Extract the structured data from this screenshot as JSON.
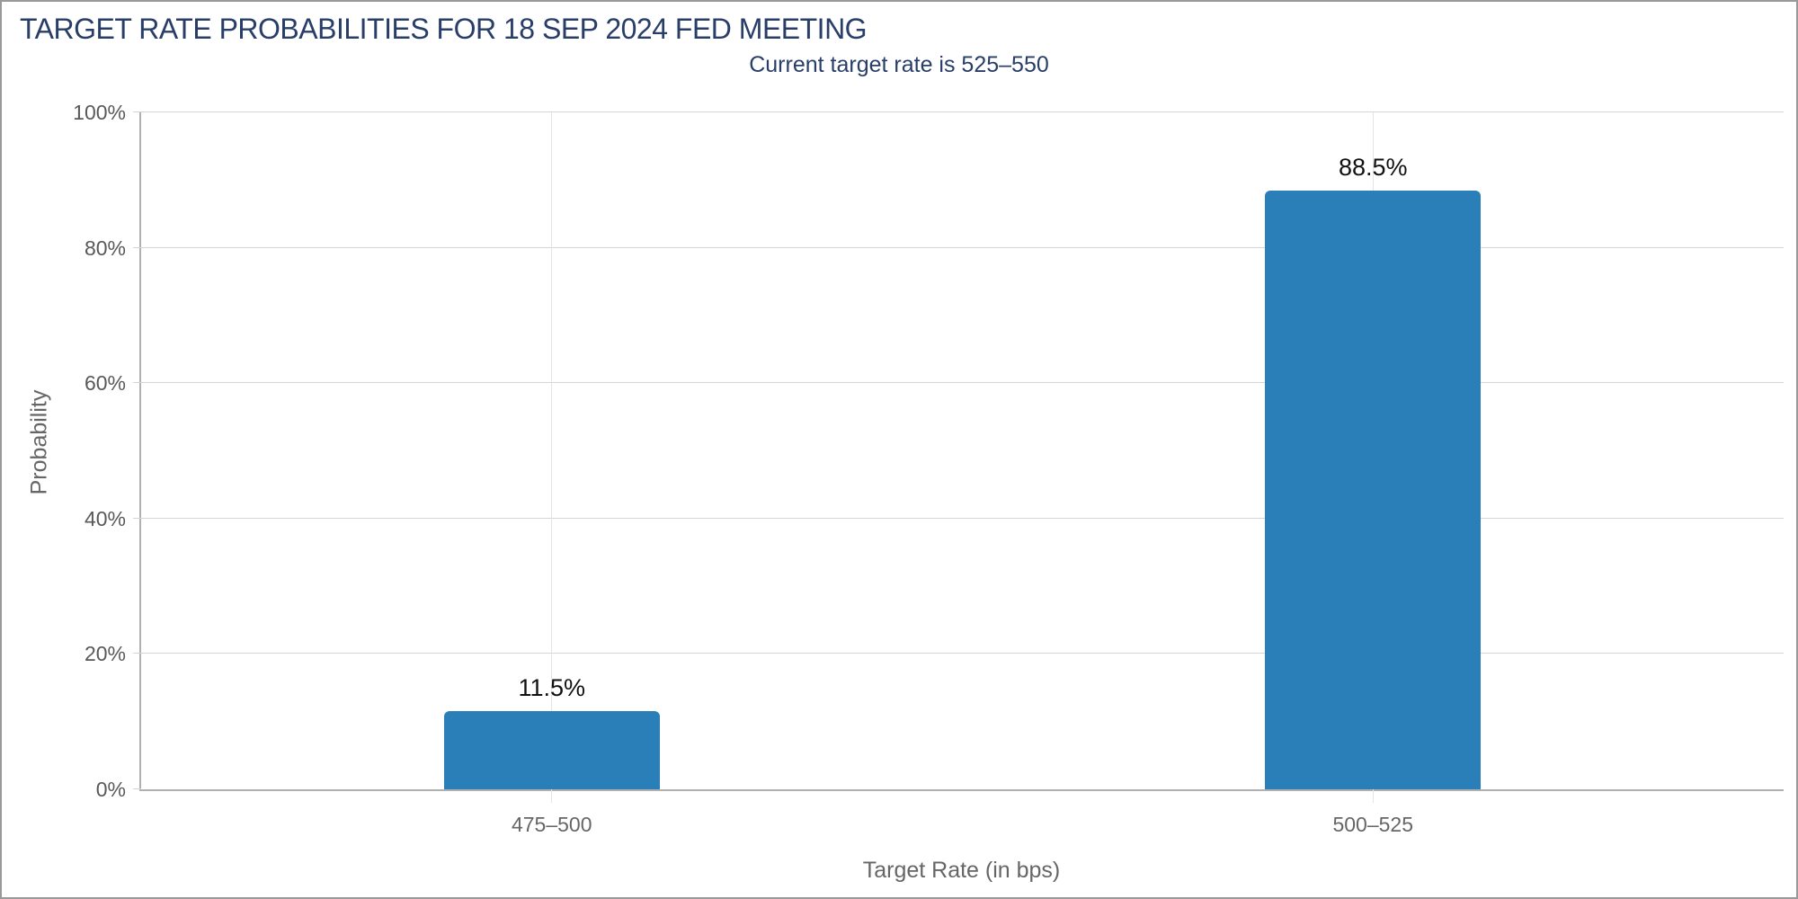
{
  "chart_data": {
    "type": "bar",
    "title": "TARGET RATE PROBABILITIES FOR 18 SEP 2024 FED MEETING",
    "subtitle": "Current target rate is 525–550",
    "xlabel": "Target Rate (in bps)",
    "ylabel": "Probability",
    "categories": [
      "475–500",
      "500–525"
    ],
    "values": [
      11.5,
      88.5
    ],
    "value_labels": [
      "11.5%",
      "88.5%"
    ],
    "y_ticks": [
      {
        "value": 0,
        "label": "0%"
      },
      {
        "value": 20,
        "label": "20%"
      },
      {
        "value": 40,
        "label": "40%"
      },
      {
        "value": 60,
        "label": "60%"
      },
      {
        "value": 80,
        "label": "80%"
      },
      {
        "value": 100,
        "label": "100%"
      }
    ],
    "ylim": [
      0,
      100
    ],
    "grid": true,
    "legend": "none",
    "colors": {
      "bar": "#2a7fb9",
      "title": "#283e69",
      "subtitle": "#283e69",
      "axis_line": "#b0b0b0",
      "gridline_h": "#d4d4d4",
      "gridline_v": "#e4e4e4",
      "tick_label": "#595959",
      "category_label": "#666666",
      "value_label": "#111111",
      "frame_border": "#999999",
      "background": "#ffffff"
    }
  }
}
